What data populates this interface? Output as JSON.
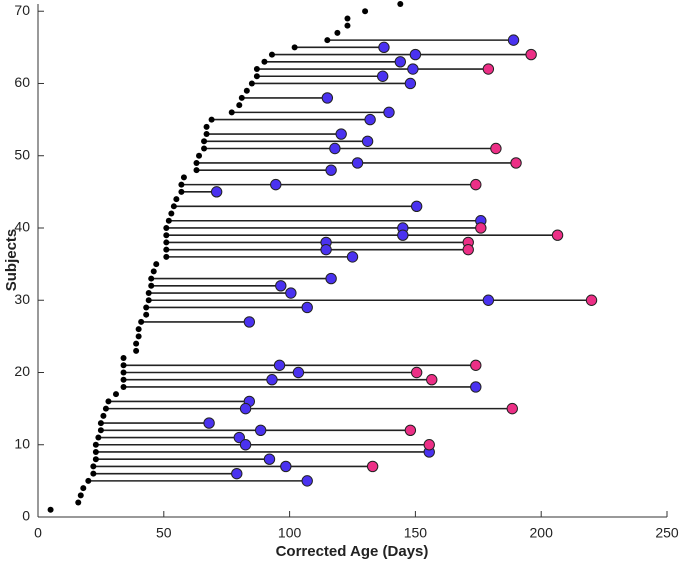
{
  "chart_data": {
    "type": "timeline",
    "xlabel": "Corrected Age (Days)",
    "ylabel": "Subjects",
    "xlim": [
      0,
      250
    ],
    "ylim": [
      0,
      71
    ],
    "xticks": [
      0,
      50,
      100,
      150,
      200,
      250
    ],
    "yticks": [
      0,
      10,
      20,
      30,
      40,
      50,
      60,
      70
    ],
    "series": [
      {
        "color": "#000000",
        "x": [
          5,
          16,
          17,
          18,
          20,
          22,
          22,
          23,
          23,
          23,
          24,
          25,
          25,
          26,
          27,
          28,
          31,
          34,
          34,
          34,
          34,
          34,
          39,
          39,
          40,
          40,
          41,
          43,
          43,
          44,
          44,
          45,
          45,
          46,
          47,
          51,
          51,
          51,
          51,
          51,
          52,
          53,
          54,
          55,
          57,
          57,
          58,
          63,
          63,
          64,
          66,
          66,
          67,
          67,
          69,
          77,
          80,
          81,
          83,
          85,
          87,
          87,
          90,
          93,
          102,
          115,
          119,
          123,
          123,
          130,
          144
        ],
        "y": [
          1,
          2,
          3,
          4,
          5,
          6,
          7,
          8,
          9,
          10,
          11,
          12,
          13,
          14,
          15,
          16,
          17,
          18,
          19,
          20,
          21,
          22,
          23,
          24,
          25,
          26,
          27,
          28,
          29,
          30,
          31,
          32,
          33,
          34,
          35,
          36,
          37,
          38,
          39,
          40,
          41,
          42,
          43,
          44,
          45,
          46,
          47,
          48,
          49,
          50,
          51,
          52,
          53,
          54,
          55,
          56,
          57,
          58,
          59,
          60,
          61,
          62,
          63,
          64,
          65,
          66,
          67,
          68,
          69,
          70,
          71
        ]
      },
      {
        "color": "#4a32f0",
        "x": [
          189,
          137.5,
          150,
          144,
          149,
          137,
          148,
          115,
          139.5,
          132,
          120.5,
          131,
          118,
          127,
          116.5,
          94.5,
          71,
          150.5,
          176,
          145,
          145,
          114.5,
          114.5,
          125,
          116.5,
          96.5,
          100.5,
          179,
          107,
          84,
          96,
          103.5,
          93,
          174,
          84,
          82.5,
          68,
          88.5,
          80,
          82.5,
          155.5,
          92,
          98.5,
          79,
          107
        ],
        "y": [
          66,
          65,
          64,
          63,
          62,
          61,
          60,
          58,
          56,
          55,
          53,
          52,
          51,
          49,
          48,
          46,
          45,
          43,
          41,
          40,
          39,
          38,
          37,
          36,
          33,
          32,
          31,
          30,
          29,
          27,
          21,
          20,
          19,
          18,
          16,
          15,
          13,
          12,
          11,
          10,
          9,
          8,
          7,
          6,
          5
        ]
      },
      {
        "color": "#ec2f86",
        "x": [
          196,
          179,
          182,
          190,
          174,
          176,
          206.5,
          171,
          171,
          220,
          174,
          150.5,
          156.5,
          188.5,
          148,
          155.5,
          133
        ],
        "y": [
          64,
          62,
          51,
          49,
          46,
          40,
          39,
          38,
          37,
          30,
          21,
          20,
          19,
          15,
          12,
          10,
          7
        ]
      }
    ]
  }
}
